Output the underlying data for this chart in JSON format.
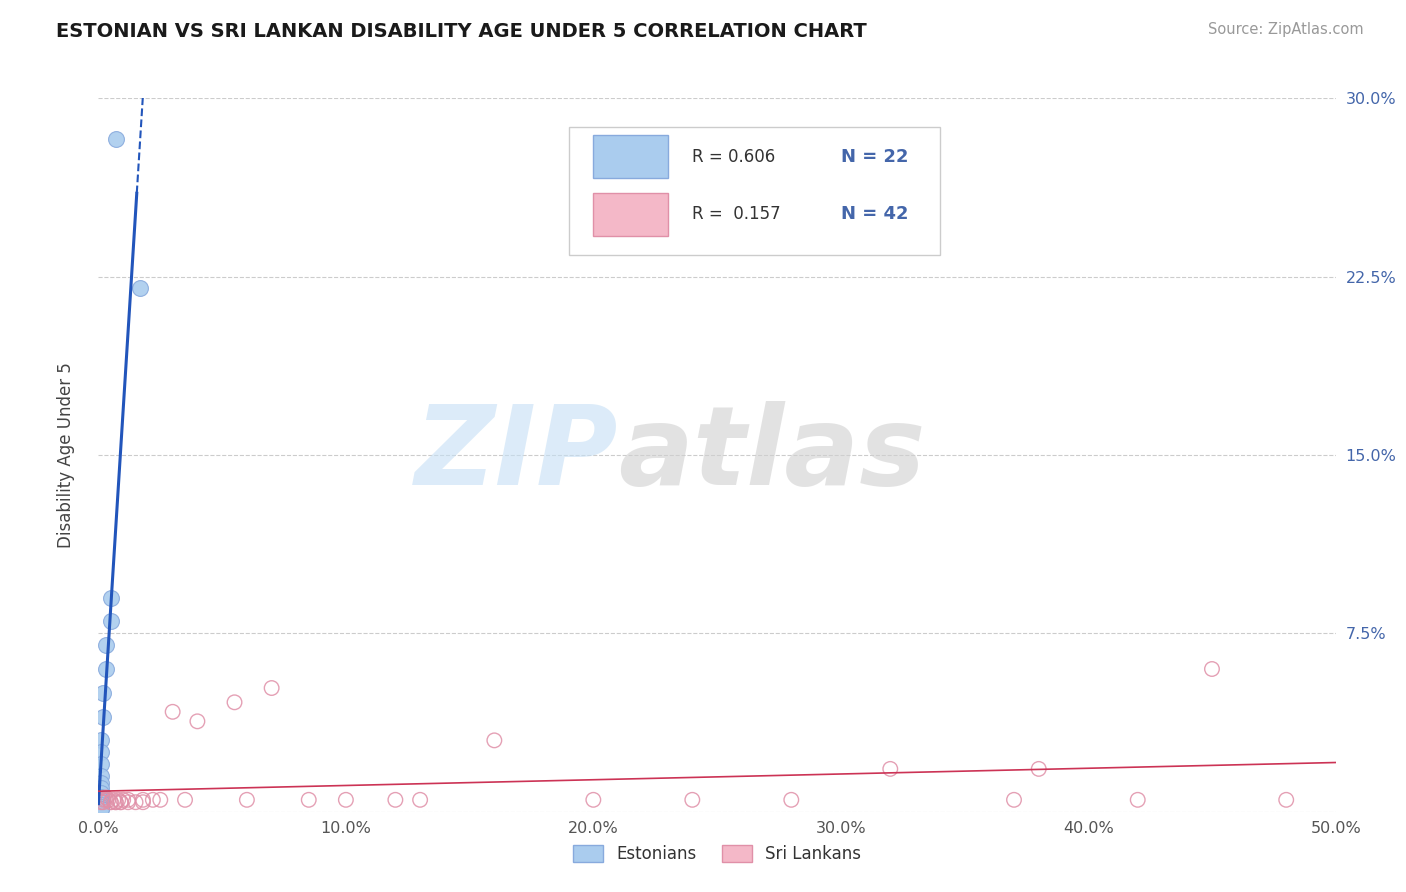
{
  "title": "ESTONIAN VS SRI LANKAN DISABILITY AGE UNDER 5 CORRELATION CHART",
  "source": "Source: ZipAtlas.com",
  "ylabel": "Disability Age Under 5",
  "xlim": [
    0.0,
    0.5
  ],
  "ylim": [
    0.0,
    0.3
  ],
  "xticks": [
    0.0,
    0.1,
    0.2,
    0.3,
    0.4,
    0.5
  ],
  "xticklabels": [
    "0.0%",
    "10.0%",
    "20.0%",
    "30.0%",
    "40.0%",
    "50.0%"
  ],
  "yticks": [
    0.0,
    0.075,
    0.15,
    0.225,
    0.3
  ],
  "yticklabels_right": [
    "",
    "7.5%",
    "15.0%",
    "22.5%",
    "30.0%"
  ],
  "grid_color": "#cccccc",
  "background_color": "#ffffff",
  "estonian_color": "#aaccee",
  "estonian_edge_color": "#88aadd",
  "srilanka_color": "#f4b8c8",
  "srilanka_edge_color": "#e090a8",
  "estonian_line_color": "#2255bb",
  "srilanka_line_color": "#cc3355",
  "tick_color": "#4466aa",
  "legend_R1": "R = 0.606",
  "legend_N1": "N = 22",
  "legend_R2": "R =  0.157",
  "legend_N2": "N = 42",
  "estonian_x": [
    0.007,
    0.017,
    0.005,
    0.005,
    0.003,
    0.003,
    0.002,
    0.002,
    0.001,
    0.001,
    0.001,
    0.001,
    0.001,
    0.001,
    0.001,
    0.001,
    0.001,
    0.001,
    0.001,
    0.001,
    0.001,
    0.001
  ],
  "estonian_y": [
    0.283,
    0.22,
    0.09,
    0.08,
    0.07,
    0.06,
    0.05,
    0.04,
    0.03,
    0.025,
    0.02,
    0.015,
    0.012,
    0.01,
    0.008,
    0.006,
    0.005,
    0.004,
    0.003,
    0.002,
    0.001,
    0.001
  ],
  "srilanka_x": [
    0.001,
    0.002,
    0.003,
    0.004,
    0.005,
    0.006,
    0.007,
    0.008,
    0.009,
    0.01,
    0.012,
    0.015,
    0.018,
    0.022,
    0.03,
    0.04,
    0.055,
    0.07,
    0.085,
    0.1,
    0.13,
    0.16,
    0.2,
    0.24,
    0.28,
    0.32,
    0.37,
    0.42,
    0.45,
    0.48,
    0.002,
    0.003,
    0.005,
    0.007,
    0.009,
    0.012,
    0.018,
    0.025,
    0.035,
    0.06,
    0.12,
    0.38
  ],
  "srilanka_y": [
    0.004,
    0.005,
    0.006,
    0.005,
    0.004,
    0.005,
    0.004,
    0.005,
    0.004,
    0.005,
    0.005,
    0.004,
    0.005,
    0.005,
    0.042,
    0.038,
    0.046,
    0.052,
    0.005,
    0.005,
    0.005,
    0.03,
    0.005,
    0.005,
    0.005,
    0.018,
    0.005,
    0.005,
    0.06,
    0.005,
    0.004,
    0.005,
    0.004,
    0.004,
    0.004,
    0.004,
    0.004,
    0.005,
    0.005,
    0.005,
    0.005,
    0.018
  ]
}
